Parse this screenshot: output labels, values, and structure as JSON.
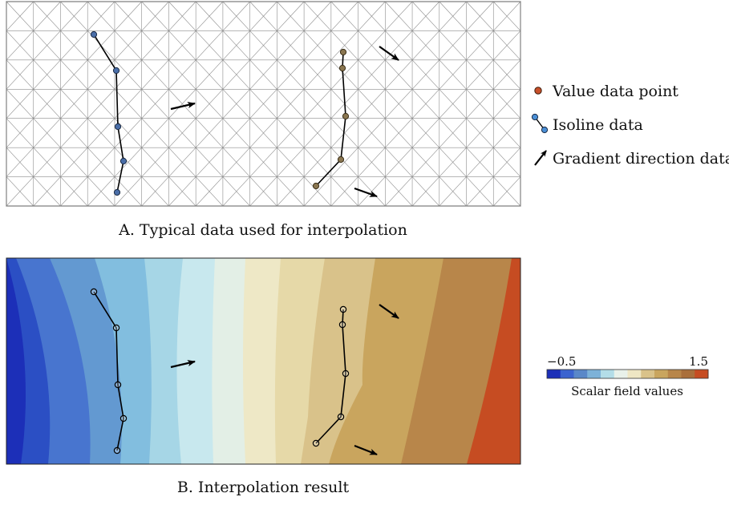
{
  "panel_a": {
    "caption": "A. Typical data used for interpolation"
  },
  "panel_b": {
    "caption": "B. Interpolation result"
  },
  "legend": {
    "value_point_label": "Value data point",
    "isoline_label": "Isoline data",
    "gradient_label": "Gradient direction data"
  },
  "colorbar": {
    "min_label": "−0.5",
    "max_label": "1.5",
    "title": "Scalar field values",
    "colors": [
      "#1c2fb8",
      "#3b63cf",
      "#5a88c8",
      "#7db2d8",
      "#b3dde8",
      "#e8f1ea",
      "#eee6c4",
      "#d9c28a",
      "#c9a55e",
      "#b8864a",
      "#a96f3b",
      "#c64c22"
    ]
  },
  "colors": {
    "isoline_point_left": "#4a6ea8",
    "isoline_point_right": "#8a7650",
    "value_point": "#c8502a",
    "mesh": "#8c8c8c"
  }
}
